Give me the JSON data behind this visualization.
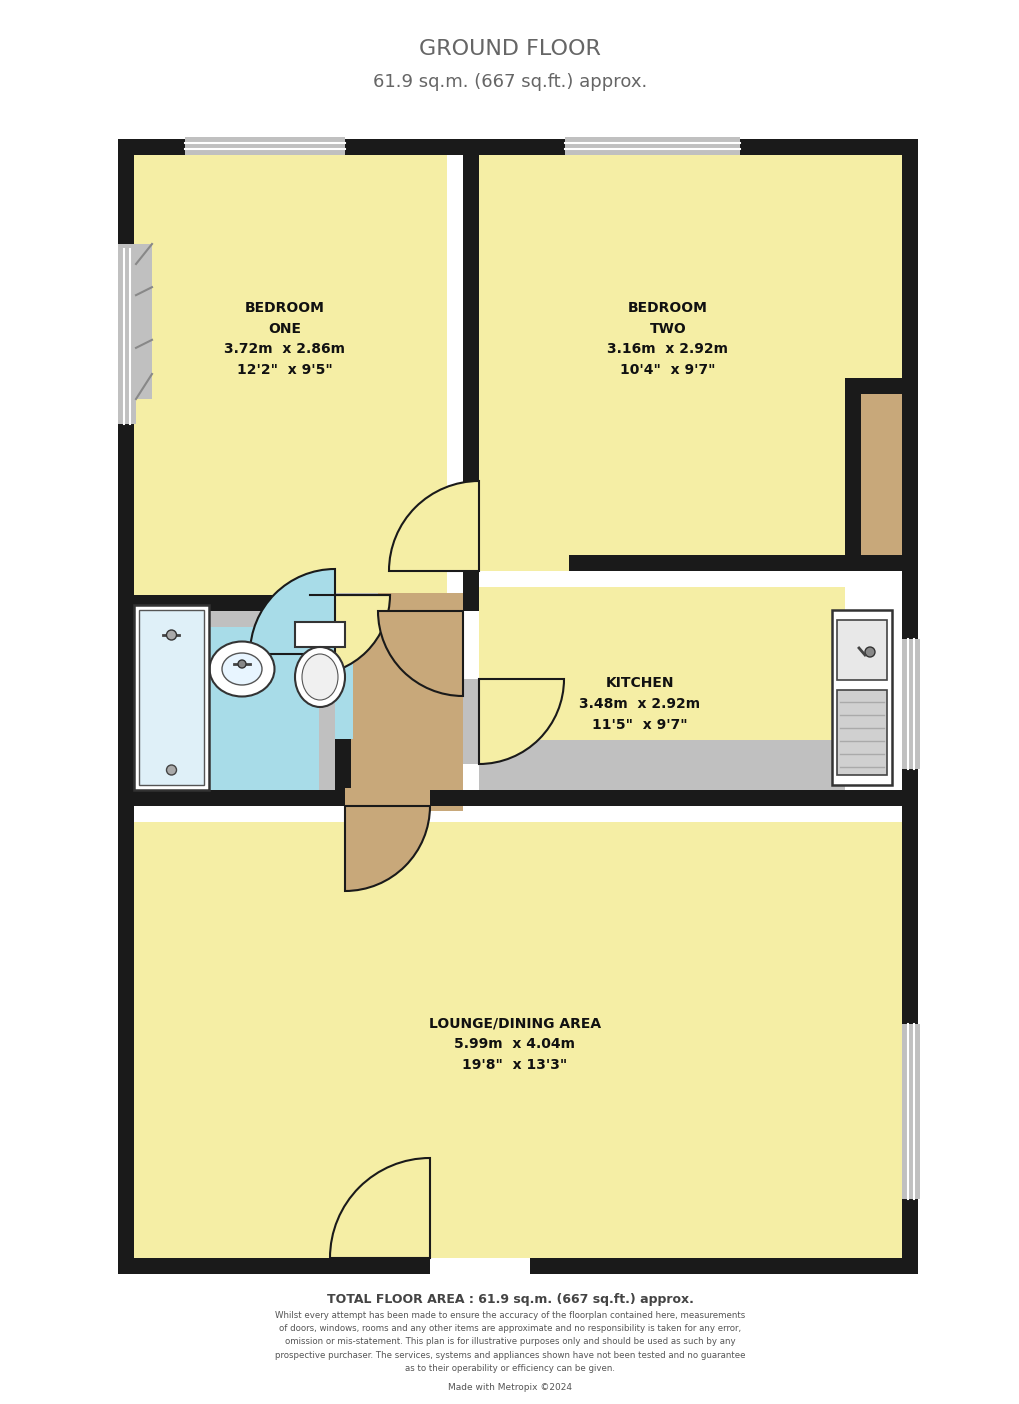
{
  "title_line1": "GROUND FLOOR",
  "title_line2": "61.9 sq.m. (667 sq.ft.) approx.",
  "title_color": "#666666",
  "background_color": "#ffffff",
  "wall_color": "#1a1a1a",
  "floor_yellow": "#f5eea5",
  "floor_tan": "#c8a87a",
  "floor_blue": "#a8dce8",
  "floor_grey": "#c0c0c0",
  "footer_total": "TOTAL FLOOR AREA : 61.9 sq.m. (667 sq.ft.) approx.",
  "footer_disclaimer": "Whilst every attempt has been made to ensure the accuracy of the floorplan contained here, measurements\nof doors, windows, rooms and any other items are approximate and no responsibility is taken for any error,\nomission or mis-statement. This plan is for illustrative purposes only and should be used as such by any\nprospective purchaser. The services, systems and appliances shown have not been tested and no guarantee\nas to their operability or efficiency can be given.",
  "footer_made": "Made with Metropix ©2024"
}
